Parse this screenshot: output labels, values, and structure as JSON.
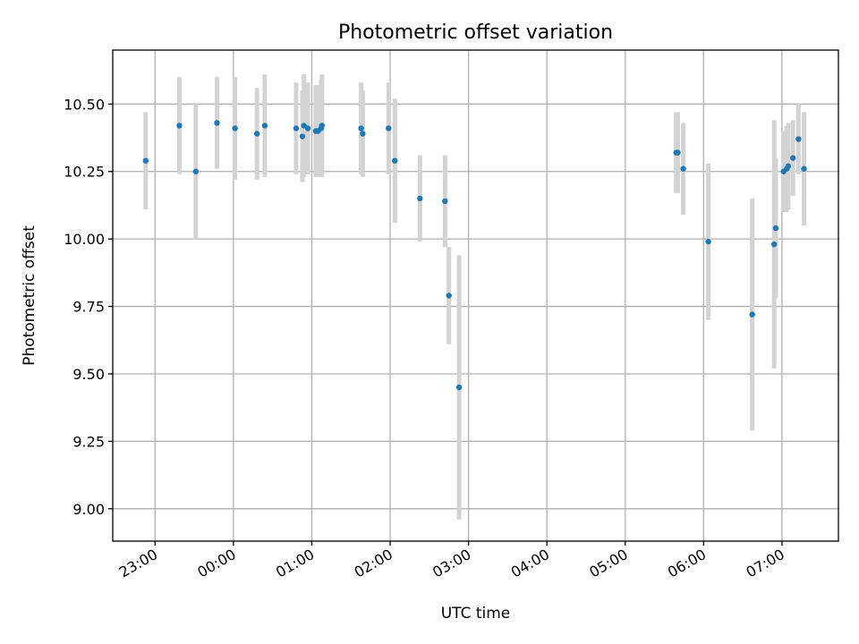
{
  "chart_data": {
    "type": "scatter",
    "title": "Photometric offset variation",
    "xlabel": "UTC time",
    "ylabel": "Photometric offset",
    "x_unit": "hours since 00:00 UTC",
    "xlim": [
      -1.54,
      7.72
    ],
    "ylim": [
      8.88,
      10.7
    ],
    "xticks": [
      {
        "value": -1,
        "label": "23:00"
      },
      {
        "value": 0,
        "label": "00:00"
      },
      {
        "value": 1,
        "label": "01:00"
      },
      {
        "value": 2,
        "label": "02:00"
      },
      {
        "value": 3,
        "label": "03:00"
      },
      {
        "value": 4,
        "label": "04:00"
      },
      {
        "value": 5,
        "label": "05:00"
      },
      {
        "value": 6,
        "label": "06:00"
      },
      {
        "value": 7,
        "label": "07:00"
      }
    ],
    "yticks": [
      {
        "value": 9.0,
        "label": "9.00"
      },
      {
        "value": 9.25,
        "label": "9.25"
      },
      {
        "value": 9.5,
        "label": "9.50"
      },
      {
        "value": 9.75,
        "label": "9.75"
      },
      {
        "value": 10.0,
        "label": "10.00"
      },
      {
        "value": 10.25,
        "label": "10.25"
      },
      {
        "value": 10.5,
        "label": "10.50"
      }
    ],
    "grid": true,
    "point_color": "#1f77b4",
    "errorbar_color": "#d3d3d3",
    "points": [
      {
        "x": -1.12,
        "y": 10.29,
        "err": 0.18
      },
      {
        "x": -0.69,
        "y": 10.42,
        "err": 0.18
      },
      {
        "x": -0.48,
        "y": 10.25,
        "err": 0.25
      },
      {
        "x": -0.21,
        "y": 10.43,
        "err": 0.17
      },
      {
        "x": 0.02,
        "y": 10.41,
        "err": 0.19
      },
      {
        "x": 0.3,
        "y": 10.39,
        "err": 0.17
      },
      {
        "x": 0.4,
        "y": 10.42,
        "err": 0.19
      },
      {
        "x": 0.8,
        "y": 10.41,
        "err": 0.17
      },
      {
        "x": 0.88,
        "y": 10.38,
        "err": 0.17
      },
      {
        "x": 0.9,
        "y": 10.42,
        "err": 0.19
      },
      {
        "x": 0.95,
        "y": 10.41,
        "err": 0.17
      },
      {
        "x": 1.05,
        "y": 10.4,
        "err": 0.17
      },
      {
        "x": 1.08,
        "y": 10.4,
        "err": 0.17
      },
      {
        "x": 1.12,
        "y": 10.41,
        "err": 0.18
      },
      {
        "x": 1.13,
        "y": 10.42,
        "err": 0.19
      },
      {
        "x": 1.63,
        "y": 10.41,
        "err": 0.17
      },
      {
        "x": 1.65,
        "y": 10.39,
        "err": 0.16
      },
      {
        "x": 1.98,
        "y": 10.41,
        "err": 0.17
      },
      {
        "x": 2.06,
        "y": 10.29,
        "err": 0.23
      },
      {
        "x": 2.38,
        "y": 10.15,
        "err": 0.16
      },
      {
        "x": 2.7,
        "y": 10.14,
        "err": 0.17
      },
      {
        "x": 2.75,
        "y": 9.79,
        "err": 0.18
      },
      {
        "x": 2.88,
        "y": 9.45,
        "err": 0.49
      },
      {
        "x": 5.65,
        "y": 10.32,
        "err": 0.15
      },
      {
        "x": 5.67,
        "y": 10.32,
        "err": 0.15
      },
      {
        "x": 5.74,
        "y": 10.26,
        "err": 0.17
      },
      {
        "x": 6.06,
        "y": 9.99,
        "err": 0.29
      },
      {
        "x": 6.62,
        "y": 9.72,
        "err": 0.43
      },
      {
        "x": 6.9,
        "y": 9.98,
        "err": 0.46
      },
      {
        "x": 6.92,
        "y": 10.04,
        "err": 0.26
      },
      {
        "x": 7.02,
        "y": 10.25,
        "err": 0.15
      },
      {
        "x": 7.06,
        "y": 10.26,
        "err": 0.16
      },
      {
        "x": 7.08,
        "y": 10.27,
        "err": 0.16
      },
      {
        "x": 7.14,
        "y": 10.3,
        "err": 0.14
      },
      {
        "x": 7.21,
        "y": 10.37,
        "err": 0.13
      },
      {
        "x": 7.28,
        "y": 10.26,
        "err": 0.21
      }
    ]
  }
}
